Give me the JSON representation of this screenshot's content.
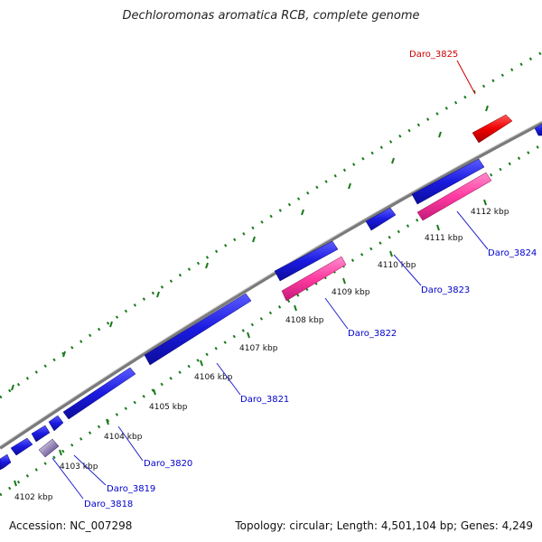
{
  "title": "Dechloromonas aromatica RCB, complete genome",
  "footer": {
    "accession": "Accession: NC_007298",
    "summary": "Topology: circular; Length: 4,501,104 bp; Genes: 4,249"
  },
  "kbp_labels": [
    "4102 kbp",
    "4103 kbp",
    "4104 kbp",
    "4105 kbp",
    "4106 kbp",
    "4107 kbp",
    "4108 kbp",
    "4109 kbp",
    "4110 kbp",
    "4111 kbp",
    "4112 kbp"
  ],
  "genes": [
    {
      "name": "Daro_3818",
      "color": "#0000cc"
    },
    {
      "name": "Daro_3819",
      "color": "#0000cc"
    },
    {
      "name": "Daro_3820",
      "color": "#0000cc"
    },
    {
      "name": "Daro_3821",
      "color": "#0000cc"
    },
    {
      "name": "Daro_3822",
      "color": "#0000cc"
    },
    {
      "name": "Daro_3823",
      "color": "#0000cc"
    },
    {
      "name": "Daro_3824",
      "color": "#0000cc"
    },
    {
      "name": "Daro_3825",
      "color": "#cc0000"
    }
  ],
  "colors": {
    "forward_gene": "#1a1adf",
    "reverse_gene": "#ff3a9a",
    "highlight_gene": "#ee0000",
    "backbone": "#888888",
    "tick": "#1a7a1a"
  }
}
